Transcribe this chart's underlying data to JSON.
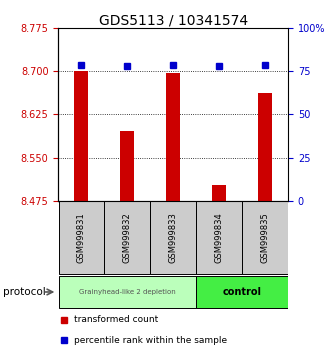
{
  "title": "GDS5113 / 10341574",
  "samples": [
    "GSM999831",
    "GSM999832",
    "GSM999833",
    "GSM999834",
    "GSM999835"
  ],
  "bar_values": [
    8.7,
    8.597,
    8.697,
    8.503,
    8.663
  ],
  "percentile_values": [
    79,
    78,
    79,
    78,
    79
  ],
  "y_min": 8.475,
  "y_max": 8.775,
  "y_ticks": [
    8.475,
    8.55,
    8.625,
    8.7,
    8.775
  ],
  "y2_ticks": [
    0,
    25,
    50,
    75,
    100
  ],
  "bar_color": "#cc0000",
  "dot_color": "#0000cc",
  "group1_label": "Grainyhead-like 2 depletion",
  "group1_color": "#bbffbb",
  "group1_samples": [
    0,
    1,
    2
  ],
  "group2_label": "control",
  "group2_color": "#44ee44",
  "group2_samples": [
    3,
    4
  ],
  "protocol_label": "protocol",
  "legend_bar_label": "transformed count",
  "legend_dot_label": "percentile rank within the sample",
  "sample_box_color": "#cccccc",
  "title_fontsize": 10,
  "axis_label_color_left": "#cc0000",
  "axis_label_color_right": "#0000cc"
}
